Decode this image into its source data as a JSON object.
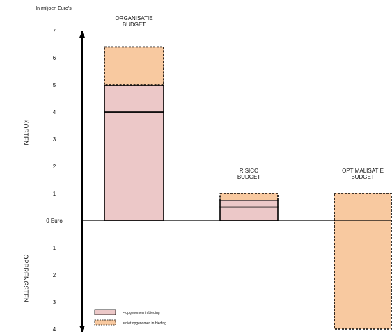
{
  "chart_data": {
    "type": "bar",
    "stacked": true,
    "unit_label": "In miljoen Euro's",
    "ylim": [
      -4,
      7
    ],
    "yticks": [
      {
        "label": "7",
        "value": 7
      },
      {
        "label": "6",
        "value": 6
      },
      {
        "label": "5",
        "value": 5
      },
      {
        "label": "4",
        "value": 4
      },
      {
        "label": "3",
        "value": 3
      },
      {
        "label": "2",
        "value": 2
      },
      {
        "label": "1",
        "value": 1
      },
      {
        "label": "0 Euro",
        "value": 0
      },
      {
        "label": "1",
        "value": -1
      },
      {
        "label": "2",
        "value": -2
      },
      {
        "label": "3",
        "value": -3
      },
      {
        "label": "4",
        "value": -4
      }
    ],
    "axis_labels": {
      "positive": "KOSTEN",
      "negative": "OPBRENGSTEN"
    },
    "categories": [
      {
        "line1": "ORGANISATIE",
        "line2": "BUDGET"
      },
      {
        "line1": "RISICO",
        "line2": "BUDGET"
      },
      {
        "line1": "OPTIMALISATIE",
        "line2": "BUDGET"
      }
    ],
    "series": [
      {
        "name": "= opgenomen in bieding",
        "color": "#ecc8c8",
        "border": "solid",
        "segments": [
          {
            "category": 0,
            "from": 0,
            "to": 4
          },
          {
            "category": 0,
            "from": 4,
            "to": 5
          },
          {
            "category": 1,
            "from": 0,
            "to": 0.5
          },
          {
            "category": 1,
            "from": 0.5,
            "to": 0.75
          }
        ]
      },
      {
        "name": "= niet opgenomen in bieding",
        "color": "#f8c9a0",
        "border": "dashed",
        "segments": [
          {
            "category": 0,
            "from": 5,
            "to": 6.4
          },
          {
            "category": 1,
            "from": 0.75,
            "to": 1
          },
          {
            "category": 2,
            "from": -4,
            "to": 1
          }
        ]
      }
    ],
    "legend": "bottom-left"
  }
}
